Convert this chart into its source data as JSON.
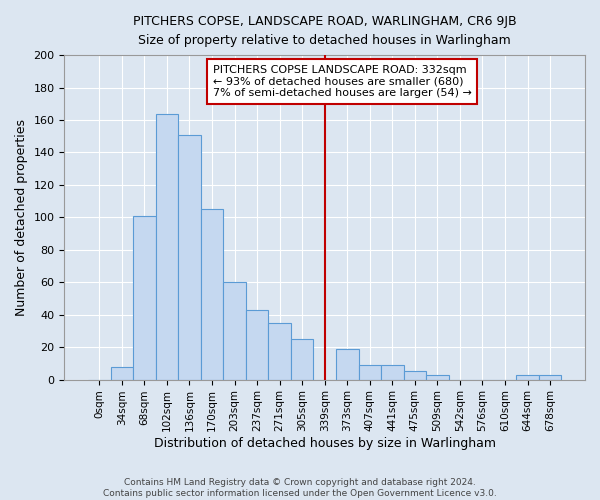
{
  "title": "PITCHERS COPSE, LANDSCAPE ROAD, WARLINGHAM, CR6 9JB",
  "subtitle": "Size of property relative to detached houses in Warlingham",
  "xlabel": "Distribution of detached houses by size in Warlingham",
  "ylabel": "Number of detached properties",
  "categories": [
    "0sqm",
    "34sqm",
    "68sqm",
    "102sqm",
    "136sqm",
    "170sqm",
    "203sqm",
    "237sqm",
    "271sqm",
    "305sqm",
    "339sqm",
    "373sqm",
    "407sqm",
    "441sqm",
    "475sqm",
    "509sqm",
    "542sqm",
    "576sqm",
    "610sqm",
    "644sqm",
    "678sqm"
  ],
  "values": [
    0,
    8,
    101,
    164,
    151,
    105,
    60,
    43,
    35,
    25,
    0,
    19,
    9,
    9,
    5,
    3,
    0,
    0,
    0,
    3,
    3
  ],
  "bar_color": "#c5d8f0",
  "bar_edge_color": "#5b9bd5",
  "background_color": "#dce6f1",
  "grid_color": "#ffffff",
  "annotation_line_index": 10,
  "annotation_line_color": "#c00000",
  "annotation_box_text": "PITCHERS COPSE LANDSCAPE ROAD: 332sqm\n← 93% of detached houses are smaller (680)\n7% of semi-detached houses are larger (54) →",
  "footer_text": "Contains HM Land Registry data © Crown copyright and database right 2024.\nContains public sector information licensed under the Open Government Licence v3.0.",
  "ylim": [
    0,
    200
  ],
  "yticks": [
    0,
    20,
    40,
    60,
    80,
    100,
    120,
    140,
    160,
    180,
    200
  ]
}
